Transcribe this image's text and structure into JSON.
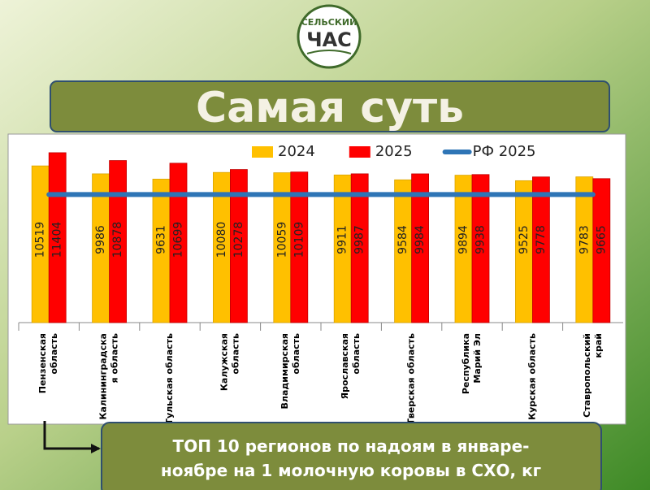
{
  "logo": {
    "top": "СЕЛЬСКИЙ",
    "bottom": "ЧАС"
  },
  "chart_data": {
    "type": "bar",
    "title": "Самая суть",
    "subtitle": "ТОП 10 регионов по надоям в январе-ноябре на 1 молочную коровы в СХО, кг",
    "categories": [
      "Пензенская\nобласть",
      "Калининградска\nя область",
      "Тульская область",
      "Калужская\nобласть",
      "Владимирская\nобласть",
      "Ярославская\nобласть",
      "Тверская область",
      "Республика\nМарий Эл",
      "Курская область",
      "Ставропольский\nкрай"
    ],
    "series": [
      {
        "name": "2024",
        "color": "#ffc000",
        "values": [
          10519,
          9986,
          9631,
          10080,
          10059,
          9911,
          9584,
          9894,
          9525,
          9783
        ]
      },
      {
        "name": "2025",
        "color": "#ff0000",
        "values": [
          11404,
          10878,
          10699,
          10278,
          10109,
          9987,
          9984,
          9938,
          9778,
          9665
        ]
      },
      {
        "name": "РФ 2025",
        "type": "line",
        "color": "#2e75b6",
        "values": [
          8600,
          8600,
          8600,
          8600,
          8600,
          8600,
          8600,
          8600,
          8600,
          8600
        ]
      }
    ],
    "ylim": [
      0,
      12000
    ],
    "legend": "top"
  }
}
